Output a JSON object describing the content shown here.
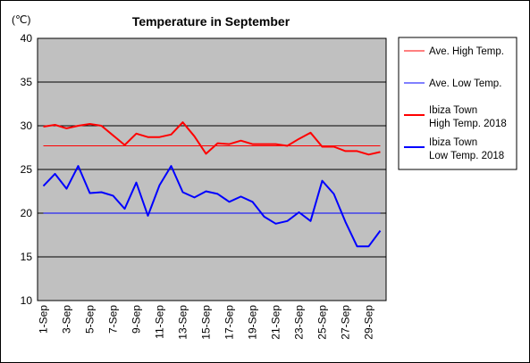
{
  "chart_data": {
    "type": "line",
    "title": "Temperature in September",
    "ylabel": "(℃)",
    "xlabel": "",
    "ylim": [
      10,
      40
    ],
    "yticks": [
      10,
      15,
      20,
      25,
      30,
      35,
      40
    ],
    "categories": [
      "1-Sep",
      "2-Sep",
      "3-Sep",
      "4-Sep",
      "5-Sep",
      "6-Sep",
      "7-Sep",
      "8-Sep",
      "9-Sep",
      "10-Sep",
      "11-Sep",
      "12-Sep",
      "13-Sep",
      "14-Sep",
      "15-Sep",
      "16-Sep",
      "17-Sep",
      "18-Sep",
      "19-Sep",
      "20-Sep",
      "21-Sep",
      "22-Sep",
      "23-Sep",
      "24-Sep",
      "25-Sep",
      "26-Sep",
      "27-Sep",
      "28-Sep",
      "29-Sep",
      "30-Sep"
    ],
    "tick_labels": [
      "1-Sep",
      "3-Sep",
      "5-Sep",
      "7-Sep",
      "9-Sep",
      "11-Sep",
      "13-Sep",
      "15-Sep",
      "17-Sep",
      "19-Sep",
      "21-Sep",
      "23-Sep",
      "25-Sep",
      "27-Sep",
      "29-Sep"
    ],
    "grid": true,
    "plot_background": "#c0c0c0",
    "legend_position": "right",
    "series": [
      {
        "name": "Ave. High Temp.",
        "legend_lines": [
          "Ave. High Temp."
        ],
        "color": "#ff0000",
        "width": 1,
        "constant": 27.7
      },
      {
        "name": "Ave. Low Temp.",
        "legend_lines": [
          "Ave. Low Temp."
        ],
        "color": "#0000ff",
        "width": 1,
        "constant": 20.0
      },
      {
        "name": "Ibiza Town High Temp. 2018",
        "legend_lines": [
          "Ibiza Town",
          "High Temp. 2018"
        ],
        "color": "#ff0000",
        "width": 2,
        "values": [
          29.9,
          30.1,
          29.7,
          30.0,
          30.2,
          30.0,
          28.9,
          27.8,
          29.1,
          28.7,
          28.7,
          29.0,
          30.4,
          28.8,
          26.8,
          28.0,
          27.9,
          28.3,
          27.9,
          27.9,
          27.9,
          27.7,
          28.5,
          29.2,
          27.6,
          27.6,
          27.1,
          27.1,
          26.7,
          27.0
        ]
      },
      {
        "name": "Ibiza Town Low Temp. 2018",
        "legend_lines": [
          "Ibiza Town",
          "Low Temp. 2018"
        ],
        "color": "#0000ff",
        "width": 2,
        "values": [
          23.1,
          24.5,
          22.8,
          25.4,
          22.3,
          22.4,
          22.0,
          20.5,
          23.5,
          19.7,
          23.2,
          25.4,
          22.4,
          21.8,
          22.5,
          22.2,
          21.3,
          21.9,
          21.3,
          19.6,
          18.8,
          19.1,
          20.1,
          19.1,
          23.7,
          22.2,
          19.0,
          16.2,
          16.2,
          18.0
        ]
      }
    ]
  }
}
